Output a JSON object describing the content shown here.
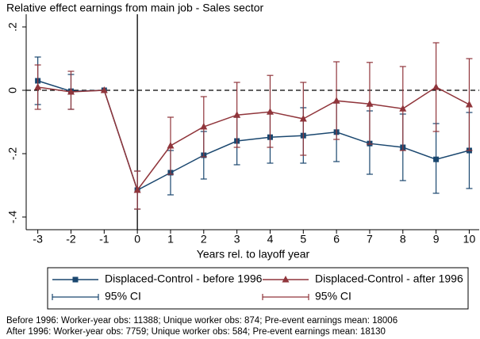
{
  "chart_data": {
    "type": "errorbar-line",
    "title": "Relative effect earnings from main job - Sales sector",
    "x_label": "Years rel. to layoff year",
    "x": [
      -3,
      -2,
      -1,
      0,
      1,
      2,
      3,
      4,
      5,
      6,
      7,
      8,
      9,
      10
    ],
    "xlim": [
      -3.35,
      10.3
    ],
    "xticks": [
      -3,
      -2,
      -1,
      0,
      1,
      2,
      3,
      4,
      5,
      6,
      7,
      8,
      9,
      10
    ],
    "ylim": [
      -0.44,
      0.24
    ],
    "yticks": [
      {
        "value": -0.4,
        "label": "-.4"
      },
      {
        "value": -0.2,
        "label": "-.2"
      },
      0,
      {
        "value": 0.2,
        "label": ".2"
      }
    ],
    "hline": 0,
    "vline": 0,
    "series": [
      {
        "name": "Displaced-Control - before 1996",
        "ci_name": "95% CI",
        "color": "#1a476f",
        "marker": "square",
        "values": [
          0.03,
          -0.003,
          0,
          -0.315,
          -0.26,
          -0.205,
          -0.16,
          -0.148,
          -0.143,
          -0.132,
          -0.168,
          -0.18,
          -0.218,
          -0.19
        ],
        "ci_low": [
          -0.045,
          -0.06,
          null,
          -0.375,
          -0.33,
          -0.28,
          -0.235,
          -0.23,
          -0.23,
          -0.225,
          -0.265,
          -0.285,
          -0.325,
          -0.31
        ],
        "ci_high": [
          0.105,
          0.05,
          null,
          -0.255,
          -0.19,
          -0.13,
          -0.085,
          -0.07,
          -0.055,
          -0.04,
          -0.065,
          -0.075,
          -0.105,
          -0.07
        ]
      },
      {
        "name": "Displaced-Control - after 1996",
        "ci_name": "95% CI",
        "color": "#90353b",
        "marker": "triangle",
        "values": [
          0.01,
          -0.005,
          0,
          -0.315,
          -0.175,
          -0.115,
          -0.078,
          -0.068,
          -0.09,
          -0.033,
          -0.043,
          -0.058,
          0.01,
          -0.045
        ],
        "ci_low": [
          -0.06,
          -0.06,
          null,
          -0.375,
          -0.265,
          -0.21,
          -0.18,
          -0.18,
          -0.205,
          -0.155,
          -0.17,
          -0.19,
          -0.13,
          -0.19
        ],
        "ci_high": [
          0.08,
          0.06,
          null,
          -0.255,
          -0.085,
          -0.02,
          0.025,
          0.047,
          0.025,
          0.09,
          0.088,
          0.075,
          0.15,
          0.1
        ]
      }
    ],
    "notes": [
      "Before 1996: Worker-year obs: 11388; Unique worker obs: 874; Pre-event earnings mean: 18006",
      "After 1996: Worker-year obs: 7759; Unique worker obs: 584; Pre-event earnings mean: 18130"
    ]
  }
}
